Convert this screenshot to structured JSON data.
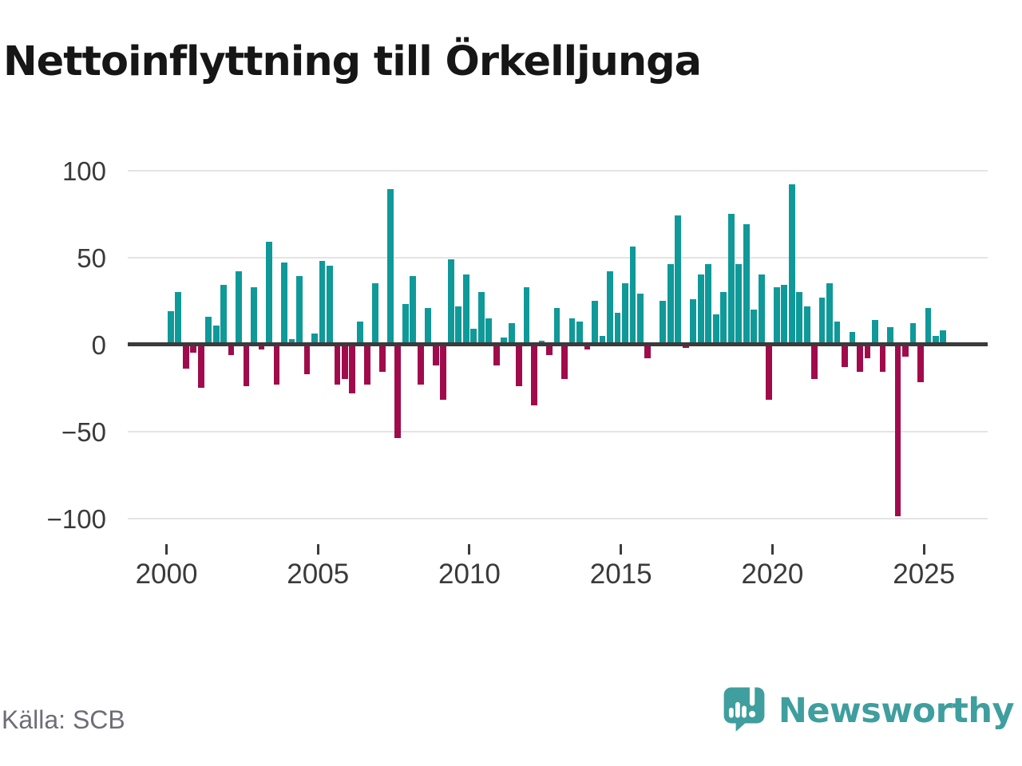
{
  "title": "Nettoinflyttning till Örkelljunga",
  "footer": {
    "source": "Källa: SCB",
    "brand": "Newsworthy"
  },
  "colors": {
    "positive": "#109999",
    "negative": "#a10b4b",
    "axis_line": "#3b3b3b",
    "gridline": "#e4e4e6",
    "tick_text": "#3a3a3a",
    "source_text": "#6d6d76",
    "brand_teal": "#3f9e9e"
  },
  "chart_data": {
    "type": "bar",
    "title": "Nettoinflyttning till Örkelljunga",
    "frequency": "quarterly",
    "start": "2000-Q1",
    "end": "2025-Q3",
    "x_ticks": [
      2000,
      2005,
      2010,
      2015,
      2020,
      2025
    ],
    "y_ticks": [
      100,
      50,
      0,
      -50,
      -100
    ],
    "ylim": [
      -100,
      100
    ],
    "grid": true,
    "legend": false,
    "series": [
      {
        "name": "Nettoinflyttning",
        "values": [
          19,
          30,
          -14,
          -5,
          -25,
          16,
          11,
          34,
          -6,
          42,
          -24,
          33,
          -3,
          59,
          -23,
          47,
          3,
          39,
          -17,
          6,
          48,
          45,
          -23,
          -20,
          -28,
          13,
          -23,
          35,
          -16,
          89,
          -54,
          23,
          39,
          -23,
          21,
          -12,
          -32,
          49,
          22,
          40,
          9,
          30,
          15,
          -12,
          4,
          12,
          -24,
          33,
          -35,
          2,
          -6,
          21,
          -20,
          15,
          13,
          -3,
          25,
          5,
          42,
          18,
          35,
          56,
          29,
          -8,
          0,
          25,
          46,
          74,
          -2,
          26,
          40,
          46,
          17,
          30,
          75,
          46,
          69,
          20,
          40,
          -32,
          33,
          34,
          92,
          30,
          22,
          -20,
          27,
          35,
          13,
          -13,
          7,
          -16,
          -8,
          14,
          -16,
          10,
          -99,
          -7,
          12,
          -22,
          21,
          5,
          8
        ]
      }
    ]
  }
}
